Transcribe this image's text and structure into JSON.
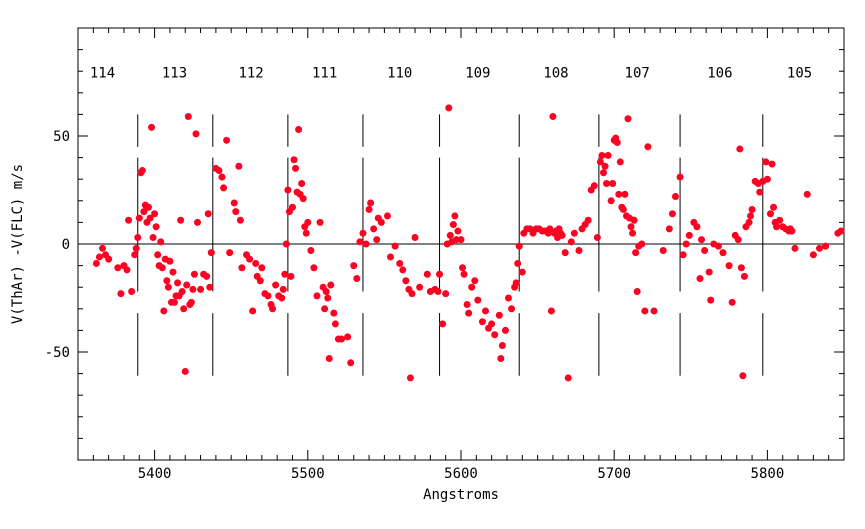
{
  "chart_data": {
    "type": "scatter",
    "title": "",
    "xlabel": "Angstroms",
    "ylabel": "V(ThAr) -V(FLC) m/s",
    "xlim": [
      5350,
      5850
    ],
    "ylim": [
      -100,
      100
    ],
    "x_ticks": [
      5400,
      5500,
      5600,
      5700,
      5800
    ],
    "y_ticks": [
      -50,
      0,
      50
    ],
    "zero_line": 0,
    "marker_color": "#ff0022",
    "order_boundaries": [
      5389,
      5438,
      5487,
      5536,
      5586,
      5638,
      5690,
      5743,
      5797
    ],
    "order_labels": [
      {
        "label": "114",
        "x": 5366
      },
      {
        "label": "113",
        "x": 5413
      },
      {
        "label": "112",
        "x": 5463
      },
      {
        "label": "111",
        "x": 5511
      },
      {
        "label": "110",
        "x": 5560
      },
      {
        "label": "109",
        "x": 5611
      },
      {
        "label": "108",
        "x": 5662
      },
      {
        "label": "107",
        "x": 5715
      },
      {
        "label": "106",
        "x": 5769
      },
      {
        "label": "105",
        "x": 5821
      }
    ],
    "points": [
      [
        5362,
        -9
      ],
      [
        5364,
        -6
      ],
      [
        5366,
        -2
      ],
      [
        5368,
        -5
      ],
      [
        5370,
        -7
      ],
      [
        5376,
        -11
      ],
      [
        5378,
        -23
      ],
      [
        5380,
        -10
      ],
      [
        5382,
        -12
      ],
      [
        5383,
        11
      ],
      [
        5385,
        -22
      ],
      [
        5387,
        -5
      ],
      [
        5388,
        -2
      ],
      [
        5389,
        3
      ],
      [
        5390,
        12
      ],
      [
        5391,
        33
      ],
      [
        5392,
        34
      ],
      [
        5393,
        15
      ],
      [
        5394,
        18
      ],
      [
        5395,
        10
      ],
      [
        5396,
        17
      ],
      [
        5397,
        12
      ],
      [
        5398,
        54
      ],
      [
        5399,
        3
      ],
      [
        5400,
        14
      ],
      [
        5401,
        8
      ],
      [
        5402,
        -5
      ],
      [
        5403,
        -10
      ],
      [
        5404,
        1
      ],
      [
        5405,
        -11
      ],
      [
        5406,
        -31
      ],
      [
        5407,
        -7
      ],
      [
        5408,
        -17
      ],
      [
        5409,
        -20
      ],
      [
        5410,
        -8
      ],
      [
        5411,
        -27
      ],
      [
        5412,
        -13
      ],
      [
        5413,
        -27
      ],
      [
        5414,
        -24
      ],
      [
        5415,
        -18
      ],
      [
        5416,
        -24
      ],
      [
        5417,
        11
      ],
      [
        5418,
        -22
      ],
      [
        5419,
        -30
      ],
      [
        5420,
        -59
      ],
      [
        5421,
        -19
      ],
      [
        5422,
        59
      ],
      [
        5423,
        -28
      ],
      [
        5424,
        -27
      ],
      [
        5425,
        -21
      ],
      [
        5426,
        -14
      ],
      [
        5427,
        51
      ],
      [
        5428,
        10
      ],
      [
        5430,
        -21
      ],
      [
        5432,
        -14
      ],
      [
        5434,
        -15
      ],
      [
        5435,
        14
      ],
      [
        5436,
        -20
      ],
      [
        5437,
        -4
      ],
      [
        5440,
        35
      ],
      [
        5442,
        34
      ],
      [
        5444,
        31
      ],
      [
        5445,
        26
      ],
      [
        5447,
        48
      ],
      [
        5449,
        -4
      ],
      [
        5452,
        19
      ],
      [
        5453,
        15
      ],
      [
        5455,
        36
      ],
      [
        5456,
        11
      ],
      [
        5457,
        -11
      ],
      [
        5460,
        -5
      ],
      [
        5462,
        -7
      ],
      [
        5464,
        -31
      ],
      [
        5466,
        -9
      ],
      [
        5467,
        -15
      ],
      [
        5469,
        -17
      ],
      [
        5470,
        -11
      ],
      [
        5472,
        -23
      ],
      [
        5474,
        -24
      ],
      [
        5476,
        -28
      ],
      [
        5477,
        -30
      ],
      [
        5479,
        -19
      ],
      [
        5481,
        -24
      ],
      [
        5483,
        -25
      ],
      [
        5484,
        -21
      ],
      [
        5485,
        -14
      ],
      [
        5486,
        0
      ],
      [
        5487,
        25
      ],
      [
        5488,
        15
      ],
      [
        5489,
        -15
      ],
      [
        5490,
        17
      ],
      [
        5491,
        39
      ],
      [
        5492,
        35
      ],
      [
        5493,
        24
      ],
      [
        5494,
        53
      ],
      [
        5495,
        23
      ],
      [
        5496,
        28
      ],
      [
        5497,
        21
      ],
      [
        5498,
        8
      ],
      [
        5499,
        5
      ],
      [
        5500,
        10
      ],
      [
        5502,
        -3
      ],
      [
        5504,
        -11
      ],
      [
        5506,
        -24
      ],
      [
        5508,
        10
      ],
      [
        5510,
        -20
      ],
      [
        5511,
        -30
      ],
      [
        5512,
        -22
      ],
      [
        5513,
        -25
      ],
      [
        5514,
        -53
      ],
      [
        5515,
        -19
      ],
      [
        5517,
        -32
      ],
      [
        5518,
        -37
      ],
      [
        5520,
        -44
      ],
      [
        5522,
        -44
      ],
      [
        5526,
        -43
      ],
      [
        5528,
        -55
      ],
      [
        5530,
        -10
      ],
      [
        5532,
        -16
      ],
      [
        5534,
        1
      ],
      [
        5536,
        5
      ],
      [
        5538,
        0
      ],
      [
        5540,
        16
      ],
      [
        5541,
        19
      ],
      [
        5543,
        7
      ],
      [
        5545,
        2
      ],
      [
        5546,
        12
      ],
      [
        5548,
        10
      ],
      [
        5552,
        13
      ],
      [
        5554,
        -6
      ],
      [
        5557,
        -1
      ],
      [
        5560,
        -9
      ],
      [
        5562,
        -12
      ],
      [
        5564,
        -17
      ],
      [
        5566,
        -21
      ],
      [
        5567,
        -62
      ],
      [
        5568,
        -23
      ],
      [
        5570,
        3
      ],
      [
        5573,
        -20
      ],
      [
        5578,
        -14
      ],
      [
        5580,
        -22
      ],
      [
        5583,
        -21
      ],
      [
        5585,
        -22
      ],
      [
        5586,
        -14
      ],
      [
        5588,
        -37
      ],
      [
        5590,
        -23
      ],
      [
        5591,
        0
      ],
      [
        5592,
        63
      ],
      [
        5593,
        4
      ],
      [
        5594,
        1
      ],
      [
        5595,
        9
      ],
      [
        5596,
        13
      ],
      [
        5597,
        2
      ],
      [
        5598,
        6
      ],
      [
        5600,
        2
      ],
      [
        5601,
        -11
      ],
      [
        5602,
        -14
      ],
      [
        5604,
        -28
      ],
      [
        5605,
        -32
      ],
      [
        5607,
        -20
      ],
      [
        5609,
        -17
      ],
      [
        5611,
        -26
      ],
      [
        5614,
        -36
      ],
      [
        5616,
        -31
      ],
      [
        5618,
        -39
      ],
      [
        5620,
        -37
      ],
      [
        5622,
        -42
      ],
      [
        5625,
        -33
      ],
      [
        5626,
        -53
      ],
      [
        5627,
        -47
      ],
      [
        5629,
        -40
      ],
      [
        5631,
        -25
      ],
      [
        5633,
        -30
      ],
      [
        5635,
        -20
      ],
      [
        5636,
        -18
      ],
      [
        5637,
        -9
      ],
      [
        5638,
        -1
      ],
      [
        5640,
        -13
      ],
      [
        5641,
        5
      ],
      [
        5643,
        7
      ],
      [
        5645,
        7
      ],
      [
        5647,
        5
      ],
      [
        5649,
        7
      ],
      [
        5651,
        7
      ],
      [
        5653,
        6
      ],
      [
        5655,
        6
      ],
      [
        5657,
        5
      ],
      [
        5658,
        7
      ],
      [
        5659,
        -31
      ],
      [
        5660,
        59
      ],
      [
        5661,
        5
      ],
      [
        5662,
        6
      ],
      [
        5663,
        3
      ],
      [
        5664,
        7
      ],
      [
        5665,
        5
      ],
      [
        5666,
        4
      ],
      [
        5668,
        -4
      ],
      [
        5670,
        -62
      ],
      [
        5672,
        1
      ],
      [
        5674,
        5
      ],
      [
        5677,
        -3
      ],
      [
        5679,
        7
      ],
      [
        5681,
        9
      ],
      [
        5683,
        11
      ],
      [
        5685,
        25
      ],
      [
        5687,
        27
      ],
      [
        5689,
        3
      ],
      [
        5691,
        38
      ],
      [
        5692,
        41
      ],
      [
        5693,
        33
      ],
      [
        5694,
        36
      ],
      [
        5695,
        28
      ],
      [
        5696,
        41
      ],
      [
        5698,
        20
      ],
      [
        5699,
        28
      ],
      [
        5700,
        48
      ],
      [
        5701,
        49
      ],
      [
        5702,
        47
      ],
      [
        5703,
        23
      ],
      [
        5704,
        38
      ],
      [
        5705,
        17
      ],
      [
        5706,
        16
      ],
      [
        5707,
        23
      ],
      [
        5708,
        13
      ],
      [
        5709,
        58
      ],
      [
        5710,
        12
      ],
      [
        5711,
        8
      ],
      [
        5712,
        5
      ],
      [
        5713,
        11
      ],
      [
        5714,
        -4
      ],
      [
        5715,
        -22
      ],
      [
        5716,
        -1
      ],
      [
        5718,
        0
      ],
      [
        5720,
        -31
      ],
      [
        5722,
        45
      ],
      [
        5726,
        -31
      ],
      [
        5732,
        -3
      ],
      [
        5736,
        7
      ],
      [
        5738,
        14
      ],
      [
        5740,
        22
      ],
      [
        5743,
        31
      ],
      [
        5745,
        -5
      ],
      [
        5747,
        0
      ],
      [
        5749,
        4
      ],
      [
        5752,
        10
      ],
      [
        5754,
        8
      ],
      [
        5756,
        -16
      ],
      [
        5757,
        2
      ],
      [
        5759,
        -3
      ],
      [
        5762,
        -13
      ],
      [
        5763,
        -26
      ],
      [
        5765,
        0
      ],
      [
        5768,
        -1
      ],
      [
        5771,
        -4
      ],
      [
        5775,
        -10
      ],
      [
        5777,
        -27
      ],
      [
        5779,
        4
      ],
      [
        5781,
        2
      ],
      [
        5782,
        44
      ],
      [
        5783,
        -11
      ],
      [
        5784,
        -61
      ],
      [
        5785,
        -15
      ],
      [
        5786,
        8
      ],
      [
        5788,
        10
      ],
      [
        5789,
        13
      ],
      [
        5790,
        16
      ],
      [
        5792,
        29
      ],
      [
        5794,
        28
      ],
      [
        5795,
        24
      ],
      [
        5797,
        29
      ],
      [
        5799,
        38
      ],
      [
        5800,
        30
      ],
      [
        5802,
        14
      ],
      [
        5803,
        37
      ],
      [
        5804,
        17
      ],
      [
        5805,
        10
      ],
      [
        5806,
        8
      ],
      [
        5808,
        11
      ],
      [
        5810,
        8
      ],
      [
        5812,
        7
      ],
      [
        5814,
        6
      ],
      [
        5815,
        7
      ],
      [
        5816,
        6
      ],
      [
        5818,
        -2
      ],
      [
        5826,
        23
      ],
      [
        5830,
        -5
      ],
      [
        5834,
        -2
      ],
      [
        5838,
        -1
      ],
      [
        5846,
        5
      ],
      [
        5848,
        6
      ]
    ]
  }
}
